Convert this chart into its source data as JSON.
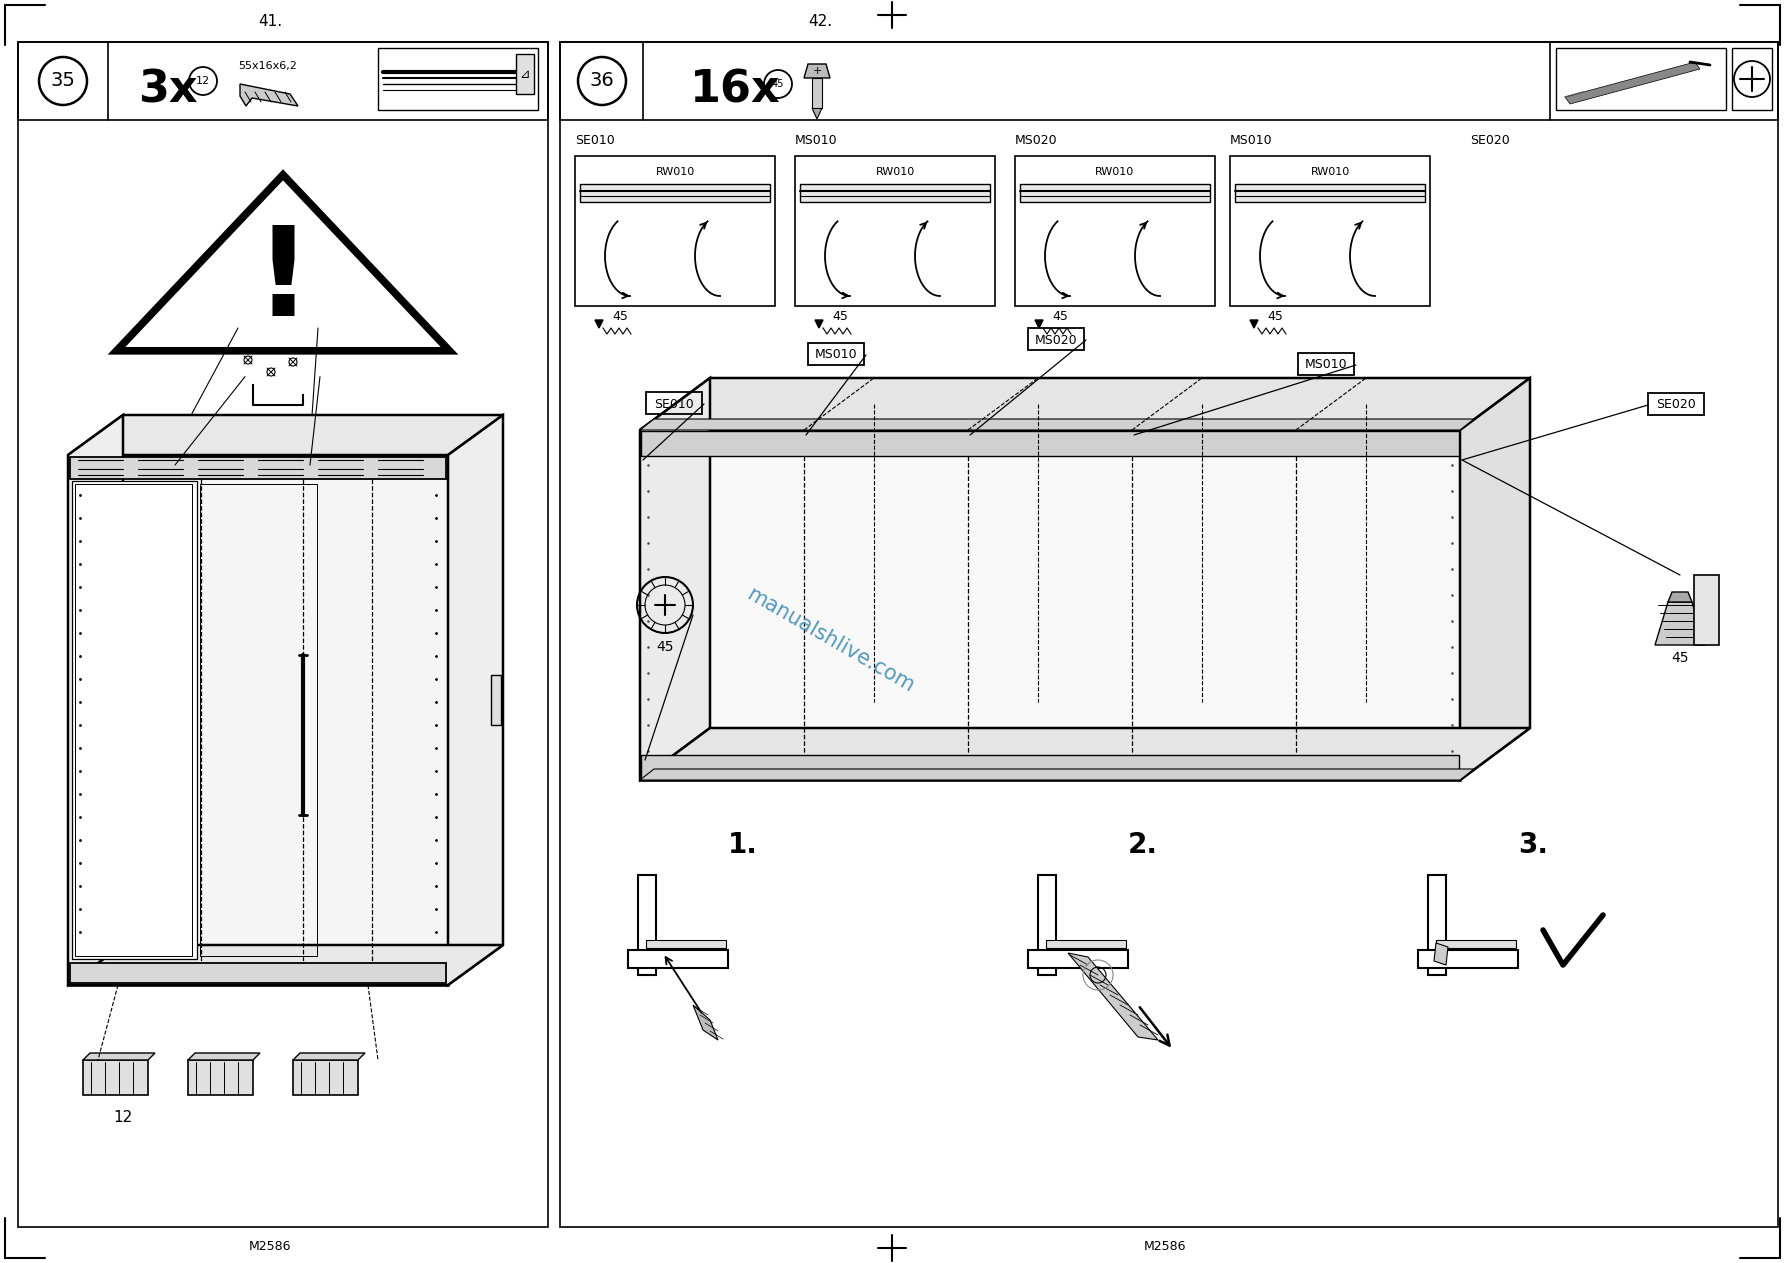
{
  "bg_color": "#ffffff",
  "page_num_left": "41.",
  "page_num_right": "42.",
  "step_left": "35",
  "step_right": "36",
  "count_left": "3x",
  "count_right": "16x",
  "label_55": "55x16x6,2",
  "label_12": "12",
  "header_labels_top": [
    "SE010",
    "MS010",
    "MS020",
    "MS010",
    "SE020"
  ],
  "rw_labels": [
    "RW010",
    "RW010",
    "RW010",
    "RW010"
  ],
  "m2586": "M2586",
  "watermark": "manualshlive.com",
  "watermark_color": "#5599bb",
  "label_boxes_mid": [
    "SE010",
    "MS010",
    "MS020",
    "MS010",
    "SE020"
  ],
  "label_45": "45",
  "step_nums": [
    "1.",
    "2.",
    "3."
  ]
}
